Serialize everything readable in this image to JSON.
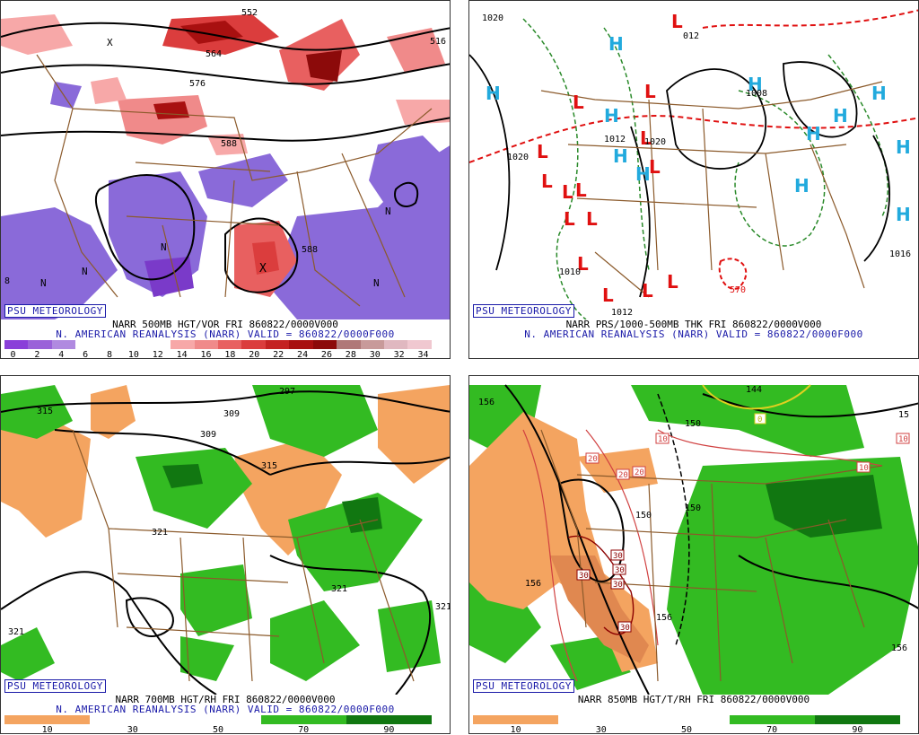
{
  "branding": "PSU METEOROLOGY",
  "panels": {
    "vor500": {
      "title": "NARR 500MB HGT/VOR FRI 860822/0000V000",
      "subtitle": "N. AMERICAN REANALYSIS (NARR) VALID = 860822/0000F000",
      "contour_labels": [
        "552",
        "564",
        "576",
        "588",
        "588",
        "516",
        "8"
      ],
      "n_marker": "N",
      "x_marker": "X",
      "colorbar": {
        "ticks": [
          "0",
          "2",
          "4",
          "6",
          "8",
          "10",
          "12",
          "14",
          "16",
          "18",
          "20",
          "22",
          "24",
          "26",
          "28",
          "30",
          "32",
          "34"
        ],
        "colors": [
          "#8a3fd9",
          "#9a62d9",
          "#b08ae0",
          "#ffffff",
          "#ffffff",
          "#ffffff",
          "#ffffff",
          "#f7a8a8",
          "#f08a8a",
          "#e86060",
          "#db3d3d",
          "#c42222",
          "#a81010",
          "#8c0a0a",
          "#b07878",
          "#c89a9a",
          "#e0b8c0",
          "#f0c8d0"
        ]
      }
    },
    "prs": {
      "title": "NARR PRS/1000-500MB THK FRI 860822/0000V000",
      "subtitle": "N. AMERICAN REANALYSIS (NARR) VALID = 860822/0000F000",
      "high_symbol": "H",
      "low_symbol": "L",
      "pressure_labels": [
        "1020",
        "012",
        "1020",
        "1008",
        "1012",
        "1016",
        "1012",
        "1020",
        "1010"
      ],
      "thickness_label": "570"
    },
    "rh700": {
      "title": "NARR 700MB HGT/RH FRI 860822/0000V000",
      "subtitle": "N. AMERICAN REANALYSIS (NARR) VALID = 860822/0000F000",
      "contour_labels": [
        "315",
        "297",
        "309",
        "309",
        "315",
        "321",
        "321",
        "321",
        "321"
      ],
      "colorbar": {
        "ticks": [
          "10",
          "30",
          "50",
          "70",
          "90"
        ],
        "colors": [
          "#f4a460",
          "#ffffff",
          "#ffffff",
          "#33bb22",
          "#117711"
        ]
      }
    },
    "t850": {
      "title": "NARR 850MB HGT/T/RH FRI 860822/0000V000",
      "contour_labels": [
        "156",
        "150",
        "150",
        "150",
        "156",
        "156",
        "156",
        "144",
        "15"
      ],
      "temp_labels": [
        "10",
        "20",
        "20",
        "20",
        "10",
        "10",
        "30",
        "30",
        "30",
        "30",
        "30",
        "0"
      ],
      "colorbar": {
        "ticks": [
          "10",
          "30",
          "50",
          "70",
          "90"
        ],
        "colors": [
          "#f4a460",
          "#ffffff",
          "#ffffff",
          "#33bb22",
          "#117711"
        ]
      }
    }
  }
}
